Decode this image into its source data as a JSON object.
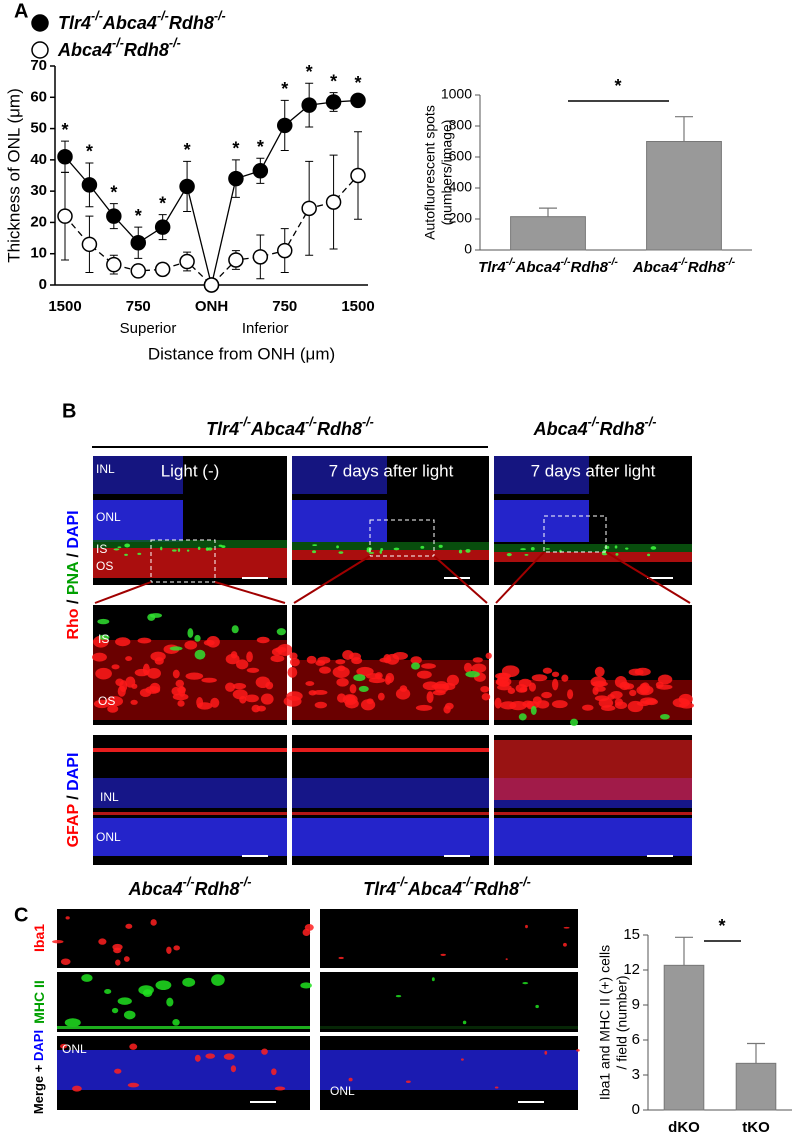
{
  "panel_labels": [
    "A",
    "B",
    "C"
  ],
  "chart_data": [
    {
      "type": "line",
      "legend": "top-left",
      "categories": [
        "1500",
        null,
        null,
        "750",
        null,
        null,
        "ONH",
        null,
        null,
        "750",
        null,
        null,
        "1500"
      ],
      "x_group_labels": [
        "Superior",
        "Inferior"
      ],
      "xlabel": "Distance from ONH (μm)",
      "ylabel": "Thickness of ONL  (μm)",
      "ylim": [
        0,
        70
      ],
      "yticks": [
        0,
        10,
        20,
        30,
        40,
        50,
        60,
        70
      ],
      "significance": [
        "*",
        "*",
        "*",
        "*",
        "*",
        "*",
        null,
        "*",
        "*",
        "*",
        "*",
        "*",
        "*"
      ],
      "series": [
        {
          "name": "Tlr4-/-Abca4-/-Rdh8-/-",
          "color": "#000000",
          "fill": "#000000",
          "dash": false,
          "values": [
            41,
            32,
            22,
            13.5,
            18.5,
            31.5,
            0,
            34,
            36.5,
            51,
            57.5,
            58.5,
            59
          ],
          "errors": [
            5,
            7,
            4,
            5,
            4,
            8,
            0,
            6,
            4,
            8,
            7,
            3,
            2
          ]
        },
        {
          "name": "Abca4-/-Rdh8-/-",
          "color": "#000000",
          "fill": "#ffffff",
          "dash": true,
          "values": [
            22,
            13,
            6.5,
            4.5,
            5,
            7.5,
            0,
            8,
            9,
            11,
            24.5,
            26.5,
            35
          ],
          "errors": [
            14,
            9,
            3,
            2,
            2,
            3,
            0,
            3,
            7,
            7,
            15,
            15,
            14
          ]
        }
      ]
    },
    {
      "type": "bar",
      "ylabel": [
        "Autofluorescent spots",
        "(numbers/image)"
      ],
      "categories": [
        "Tlr4-/-Abca4-/-Rdh8-/-",
        "Abca4-/-Rdh8-/-"
      ],
      "values": [
        215,
        700
      ],
      "errors": [
        55,
        160
      ],
      "color": "#999999",
      "ylim": [
        0,
        1000
      ],
      "yticks": [
        0,
        200,
        400,
        600,
        800,
        1000
      ],
      "significance": "*"
    },
    {
      "type": "bar",
      "ylabel": [
        "Iba1 and MHC II (+) cells",
        "/ field (number)"
      ],
      "categories": [
        "dKO",
        "tKO"
      ],
      "values": [
        12.4,
        4.0
      ],
      "errors": [
        2.4,
        1.7
      ],
      "color": "#999999",
      "ylim": [
        0,
        15
      ],
      "yticks": [
        0,
        3,
        6,
        9,
        12,
        15
      ],
      "significance": "*"
    }
  ],
  "panel_b": {
    "group_headers": [
      "Tlr4-/-Abca4-/-Rdh8-/-",
      "Abca4-/-Rdh8-/-"
    ],
    "column_labels": [
      "Light (-)",
      "7 days after light",
      "7 days after light"
    ],
    "row_labels": [
      [
        {
          "text": "Rho",
          "color": "#ff0000"
        },
        {
          "text": " / ",
          "color": "#000000"
        },
        {
          "text": "PNA",
          "color": "#00a000"
        },
        {
          "text": " / ",
          "color": "#000000"
        },
        {
          "text": "DAPI",
          "color": "#0000ff"
        }
      ],
      [
        {
          "text": "GFAP",
          "color": "#ff0000"
        },
        {
          "text": " / ",
          "color": "#000000"
        },
        {
          "text": "DAPI",
          "color": "#0000ff"
        }
      ]
    ],
    "layer_labels_top": [
      "INL",
      "ONL",
      "IS",
      "OS"
    ],
    "layer_labels_zoom": [
      "IS",
      "OS"
    ],
    "layer_labels_bottom": [
      "INL",
      "ONL"
    ]
  },
  "panel_c": {
    "column_headers": [
      "Abca4-/-Rdh8-/-",
      "Tlr4-/-Abca4-/-Rdh8-/-"
    ],
    "row_labels": [
      [
        {
          "text": "Iba1",
          "color": "#ff0000"
        }
      ],
      [
        {
          "text": "MHC II",
          "color": "#00a000"
        }
      ],
      [
        {
          "text": "Merge ",
          "color": "#000000"
        },
        {
          "text": "+ ",
          "color": "#000000"
        },
        {
          "text": "DAPI",
          "color": "#0000ff"
        }
      ]
    ],
    "layer_labels": [
      "ONL",
      "ONL"
    ]
  }
}
